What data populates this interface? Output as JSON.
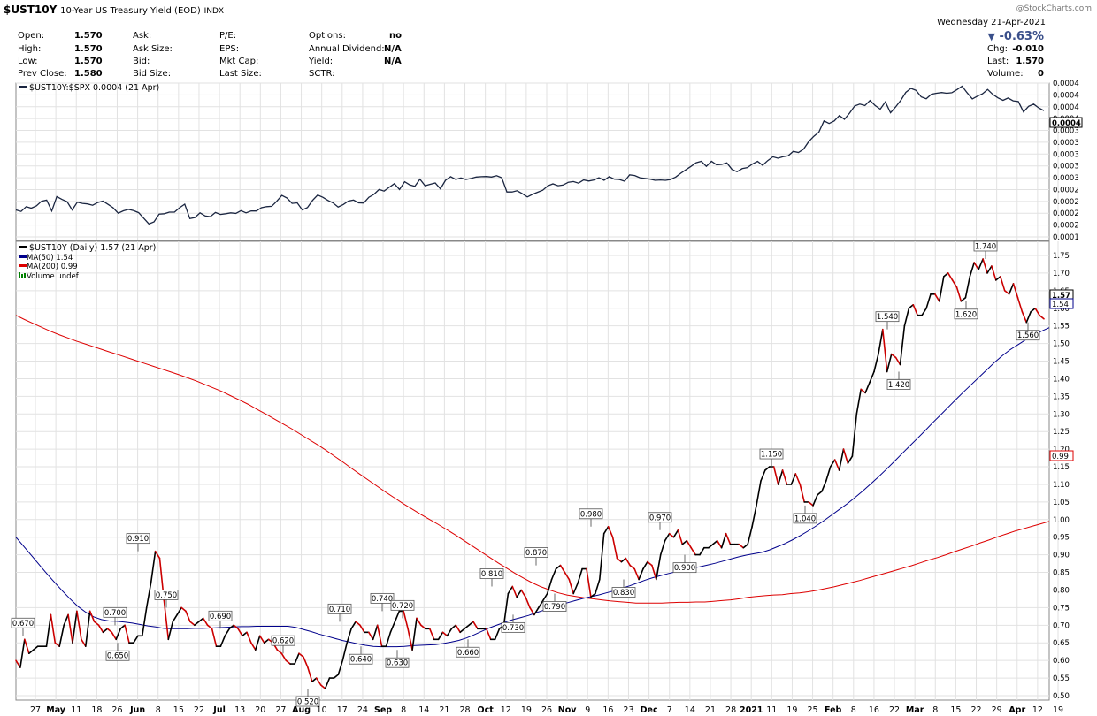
{
  "header": {
    "symbol": "$UST10Y",
    "description": "10-Year US Treasury Yield (EOD)",
    "exchange": "INDX",
    "watermark": "@StockCharts.com",
    "date": "Wednesday  21-Apr-2021",
    "change_pct": "-0.63%",
    "change_arrow": "▼",
    "left_block": [
      {
        "label": "Open:",
        "value": "1.570"
      },
      {
        "label": "High:",
        "value": "1.570"
      },
      {
        "label": "Low:",
        "value": "1.570"
      },
      {
        "label": "Prev Close:",
        "value": "1.580"
      }
    ],
    "ask_block": [
      "Ask:",
      "Ask Size:",
      "Bid:",
      "Bid Size:"
    ],
    "pe_block": [
      "P/E:",
      "EPS:",
      "Mkt Cap:",
      "Last Size:"
    ],
    "options_block": [
      {
        "label": "Options:",
        "value": "no"
      },
      {
        "label": "Annual Dividend:",
        "value": "N/A"
      },
      {
        "label": "Yield:",
        "value": "N/A"
      },
      {
        "label": "SCTR:",
        "value": ""
      }
    ],
    "right_block": [
      {
        "label": "Chg:",
        "value": "-0.010"
      },
      {
        "label": "Last:",
        "value": "1.570"
      },
      {
        "label": "Volume:",
        "value": "0"
      }
    ]
  },
  "colors": {
    "price": "#000000",
    "price_down": "#cc0000",
    "ma50": "#00008b",
    "ma200": "#dd0000",
    "volume": "#008000",
    "grid": "#e2e2e2",
    "axis": "#888888"
  },
  "chart_data": [
    {
      "type": "line",
      "panel": "ratio",
      "legend": "$UST10Y:$SPX 0.0004 (21 Apr)",
      "y_ticks": [
        "0.0004",
        "0.0004",
        "0.0004",
        "0.0004",
        "0.0003",
        "0.0003",
        "0.0003",
        "0.0003",
        "0.0003",
        "0.0002",
        "0.0002",
        "0.0002",
        "0.0002",
        "0.0001"
      ],
      "last_value": "0.0004",
      "series": [
        {
          "name": "$UST10Y:$SPX",
          "values": [
            0.1752,
            0.1658,
            0.1964,
            0.187,
            0.2011,
            0.2317,
            0.2388,
            0.1682,
            0.2623,
            0.2435,
            0.2294,
            0.1752,
            0.2258,
            0.2176,
            0.2141,
            0.2058,
            0.2235,
            0.2329,
            0.2117,
            0.1894,
            0.1541,
            0.1694,
            0.1788,
            0.1705,
            0.1576,
            0.1211,
            0.0847,
            0.0976,
            0.1482,
            0.1505,
            0.1611,
            0.1611,
            0.1894,
            0.2129,
            0.1188,
            0.1258,
            0.1564,
            0.1364,
            0.1317,
            0.1588,
            0.1458,
            0.1505,
            0.1564,
            0.1529,
            0.1705,
            0.1564,
            0.1682,
            0.1682,
            0.1894,
            0.1964,
            0.1988,
            0.2317,
            0.2694,
            0.2529,
            0.2176,
            0.2211,
            0.1752,
            0.1905,
            0.2376,
            0.2717,
            0.2576,
            0.2376,
            0.2211,
            0.1941,
            0.2105,
            0.2329,
            0.2399,
            0.2211,
            0.2199,
            0.2576,
            0.2764,
            0.3081,
            0.2976,
            0.3222,
            0.3457,
            0.3081,
            0.3587,
            0.3387,
            0.3293,
            0.3751,
            0.3328,
            0.3422,
            0.3504,
            0.3128,
            0.3681,
            0.3916,
            0.3728,
            0.3834,
            0.3728,
            0.3798,
            0.3893,
            0.3916,
            0.3928,
            0.3893,
            0.3975,
            0.3846,
            0.2917,
            0.2917,
            0.2999,
            0.2811,
            0.2599,
            0.2764,
            0.2905,
            0.3034,
            0.3316,
            0.3446,
            0.3328,
            0.3375,
            0.3551,
            0.3598,
            0.3492,
            0.3704,
            0.3634,
            0.3704,
            0.3845,
            0.3681,
            0.3916,
            0.3751,
            0.3728,
            0.3622,
            0.4034,
            0.3986,
            0.3845,
            0.3798,
            0.3751,
            0.3681,
            0.3704,
            0.3681,
            0.3728,
            0.3892,
            0.4139,
            0.4362,
            0.4586,
            0.4821,
            0.4915,
            0.4586,
            0.4915,
            0.4692,
            0.4715,
            0.4809,
            0.4386,
            0.4233,
            0.4439,
            0.4503,
            0.4738,
            0.4915,
            0.4656,
            0.4962,
            0.5209,
            0.5115,
            0.5221,
            0.5268,
            0.5562,
            0.5491,
            0.5703,
            0.6197,
            0.6538,
            0.6809,
            0.7538,
            0.7373,
            0.7538,
            0.7891,
            0.7644,
            0.8044,
            0.8514,
            0.8632,
            0.8538,
            0.8867,
            0.8538,
            0.8303,
            0.8773,
            0.8067,
            0.8444,
            0.8867,
            0.9396,
            0.9655,
            0.9525,
            0.9102,
            0.8985,
            0.9278,
            0.9337,
            0.9384,
            0.9337,
            0.9372,
            0.9572,
            0.9796,
            0.9361,
            0.8973,
            0.9149,
            0.9302,
            0.9584,
            0.9267,
            0.9043,
            0.8879,
            0.9031,
            0.8844,
            0.8796,
            0.8126,
            0.8491,
            0.8632,
            0.8385,
            0.8208
          ]
        }
      ]
    },
    {
      "type": "line",
      "panel": "yield",
      "legend_price": "$UST10Y (Daily) 1.57 (21 Apr)",
      "legend_ma50": "MA(50) 1.54",
      "legend_ma200": "MA(200) 0.99",
      "legend_volume": "Volume undef",
      "ylim": [
        0.5,
        1.75
      ],
      "y_ticks": [
        "1.75",
        "1.70",
        "1.65",
        "1.60",
        "1.55",
        "1.50",
        "1.45",
        "1.40",
        "1.35",
        "1.30",
        "1.25",
        "1.20",
        "1.15",
        "1.10",
        "1.05",
        "1.00",
        "0.95",
        "0.90",
        "0.85",
        "0.80",
        "0.75",
        "0.70",
        "0.65",
        "0.60",
        "0.55",
        "0.50"
      ],
      "last_labels": [
        "1.57",
        "1.54",
        "0.99"
      ],
      "x_ticks": [
        "27",
        "May",
        "11",
        "18",
        "26",
        "Jun",
        "8",
        "15",
        "22",
        "Jul",
        "13",
        "20",
        "27",
        "Aug",
        "10",
        "17",
        "24",
        "Sep",
        "8",
        "14",
        "21",
        "28",
        "Oct",
        "12",
        "19",
        "26",
        "Nov",
        "9",
        "16",
        "23",
        "Dec",
        "7",
        "14",
        "21",
        "28",
        "2021",
        "11",
        "19",
        "25",
        "Feb",
        "8",
        "16",
        "22",
        "Mar",
        "8",
        "15",
        "22",
        "29",
        "Apr",
        "12",
        "19"
      ],
      "x_ticks_bold": [
        "May",
        "Jun",
        "Jul",
        "Aug",
        "Sep",
        "Oct",
        "Nov",
        "Dec",
        "2021",
        "Feb",
        "Mar",
        "Apr"
      ],
      "annotations": [
        "0.670",
        "0.650",
        "0.700",
        "0.910",
        "0.750",
        "0.690",
        "0.620",
        "0.520",
        "0.710",
        "0.640",
        "0.740",
        "0.630",
        "0.720",
        "0.660",
        "0.810",
        "0.730",
        "0.870",
        "0.790",
        "0.980",
        "0.830",
        "0.970",
        "0.900",
        "1.150",
        "1.040",
        "1.540",
        "1.420",
        "1.620",
        "1.740",
        "1.560"
      ],
      "series": [
        {
          "name": "$UST10Y",
          "values": [
            0.6,
            0.58,
            0.66,
            0.62,
            0.63,
            0.64,
            0.64,
            0.64,
            0.73,
            0.65,
            0.64,
            0.7,
            0.73,
            0.65,
            0.74,
            0.66,
            0.64,
            0.74,
            0.71,
            0.7,
            0.68,
            0.69,
            0.68,
            0.66,
            0.69,
            0.7,
            0.65,
            0.65,
            0.67,
            0.67,
            0.75,
            0.82,
            0.91,
            0.89,
            0.77,
            0.66,
            0.71,
            0.73,
            0.75,
            0.74,
            0.71,
            0.7,
            0.71,
            0.72,
            0.7,
            0.69,
            0.64,
            0.64,
            0.67,
            0.69,
            0.7,
            0.69,
            0.67,
            0.68,
            0.65,
            0.63,
            0.67,
            0.65,
            0.66,
            0.65,
            0.63,
            0.62,
            0.6,
            0.59,
            0.59,
            0.62,
            0.61,
            0.58,
            0.54,
            0.55,
            0.53,
            0.52,
            0.55,
            0.55,
            0.56,
            0.6,
            0.65,
            0.69,
            0.71,
            0.7,
            0.68,
            0.68,
            0.66,
            0.7,
            0.64,
            0.64,
            0.68,
            0.71,
            0.74,
            0.74,
            0.69,
            0.63,
            0.72,
            0.7,
            0.69,
            0.69,
            0.66,
            0.66,
            0.68,
            0.67,
            0.69,
            0.7,
            0.68,
            0.69,
            0.7,
            0.71,
            0.69,
            0.69,
            0.69,
            0.66,
            0.66,
            0.69,
            0.7,
            0.79,
            0.81,
            0.78,
            0.8,
            0.78,
            0.75,
            0.73,
            0.75,
            0.77,
            0.79,
            0.83,
            0.86,
            0.87,
            0.85,
            0.83,
            0.79,
            0.82,
            0.86,
            0.86,
            0.78,
            0.79,
            0.83,
            0.96,
            0.98,
            0.95,
            0.89,
            0.88,
            0.89,
            0.87,
            0.86,
            0.83,
            0.86,
            0.88,
            0.87,
            0.83,
            0.9,
            0.94,
            0.96,
            0.95,
            0.97,
            0.93,
            0.94,
            0.92,
            0.9,
            0.9,
            0.92,
            0.92,
            0.93,
            0.94,
            0.92,
            0.96,
            0.93,
            0.93,
            0.93,
            0.92,
            0.93,
            0.98,
            1.04,
            1.11,
            1.14,
            1.15,
            1.15,
            1.1,
            1.14,
            1.1,
            1.1,
            1.13,
            1.1,
            1.05,
            1.05,
            1.04,
            1.07,
            1.08,
            1.11,
            1.15,
            1.17,
            1.14,
            1.2,
            1.16,
            1.18,
            1.3,
            1.37,
            1.36,
            1.39,
            1.42,
            1.47,
            1.54,
            1.42,
            1.47,
            1.46,
            1.44,
            1.55,
            1.6,
            1.61,
            1.58,
            1.58,
            1.6,
            1.64,
            1.64,
            1.62,
            1.69,
            1.7,
            1.68,
            1.66,
            1.62,
            1.63,
            1.69,
            1.73,
            1.71,
            1.74,
            1.7,
            1.72,
            1.68,
            1.69,
            1.65,
            1.64,
            1.67,
            1.63,
            1.59,
            1.56,
            1.59,
            1.6,
            1.58,
            1.57
          ]
        },
        {
          "name": "MA(50)",
          "values": [
            0.95,
            0.924,
            0.898,
            0.872,
            0.846,
            0.821,
            0.797,
            0.774,
            0.753,
            0.737,
            0.724,
            0.716,
            0.712,
            0.711,
            0.709,
            0.706,
            0.702,
            0.698,
            0.695,
            0.691,
            0.69,
            0.69,
            0.69,
            0.691,
            0.691,
            0.692,
            0.693,
            0.694,
            0.695,
            0.696,
            0.696,
            0.697,
            0.697,
            0.697,
            0.697,
            0.697,
            0.694,
            0.688,
            0.682,
            0.675,
            0.669,
            0.663,
            0.657,
            0.652,
            0.647,
            0.643,
            0.64,
            0.639,
            0.639,
            0.639,
            0.64,
            0.642,
            0.643,
            0.644,
            0.645,
            0.648,
            0.652,
            0.657,
            0.664,
            0.673,
            0.683,
            0.693,
            0.701,
            0.709,
            0.716,
            0.722,
            0.728,
            0.736,
            0.743,
            0.751,
            0.757,
            0.764,
            0.77,
            0.776,
            0.781,
            0.786,
            0.792,
            0.798,
            0.805,
            0.812,
            0.82,
            0.828,
            0.835,
            0.841,
            0.847,
            0.852,
            0.857,
            0.862,
            0.866,
            0.871,
            0.876,
            0.882,
            0.888,
            0.894,
            0.899,
            0.903,
            0.907,
            0.914,
            0.923,
            0.932,
            0.943,
            0.955,
            0.968,
            0.982,
            0.997,
            1.013,
            1.029,
            1.045,
            1.063,
            1.081,
            1.101,
            1.121,
            1.142,
            1.164,
            1.186,
            1.208,
            1.23,
            1.252,
            1.275,
            1.297,
            1.319,
            1.341,
            1.363,
            1.384,
            1.405,
            1.426,
            1.447,
            1.466,
            1.483,
            1.497,
            1.511,
            1.523,
            1.535,
            1.545
          ]
        },
        {
          "name": "MA(200)",
          "values": [
            1.58,
            1.568,
            1.557,
            1.546,
            1.535,
            1.525,
            1.516,
            1.507,
            1.499,
            1.491,
            1.483,
            1.475,
            1.467,
            1.459,
            1.451,
            1.443,
            1.435,
            1.427,
            1.419,
            1.411,
            1.402,
            1.393,
            1.383,
            1.373,
            1.363,
            1.351,
            1.339,
            1.327,
            1.313,
            1.3,
            1.286,
            1.272,
            1.258,
            1.243,
            1.228,
            1.213,
            1.197,
            1.18,
            1.163,
            1.145,
            1.128,
            1.111,
            1.094,
            1.077,
            1.061,
            1.045,
            1.03,
            1.015,
            1.001,
            0.987,
            0.972,
            0.957,
            0.941,
            0.925,
            0.909,
            0.893,
            0.877,
            0.862,
            0.847,
            0.833,
            0.82,
            0.809,
            0.8,
            0.792,
            0.786,
            0.782,
            0.778,
            0.775,
            0.772,
            0.769,
            0.767,
            0.765,
            0.763,
            0.763,
            0.763,
            0.763,
            0.764,
            0.765,
            0.765,
            0.766,
            0.766,
            0.768,
            0.77,
            0.772,
            0.775,
            0.779,
            0.782,
            0.784,
            0.786,
            0.787,
            0.79,
            0.792,
            0.795,
            0.799,
            0.804,
            0.809,
            0.815,
            0.821,
            0.827,
            0.834,
            0.841,
            0.848,
            0.855,
            0.862,
            0.869,
            0.877,
            0.885,
            0.892,
            0.9,
            0.909,
            0.917,
            0.925,
            0.934,
            0.942,
            0.951,
            0.959,
            0.967,
            0.974,
            0.981,
            0.988,
            0.995
          ]
        }
      ]
    }
  ]
}
